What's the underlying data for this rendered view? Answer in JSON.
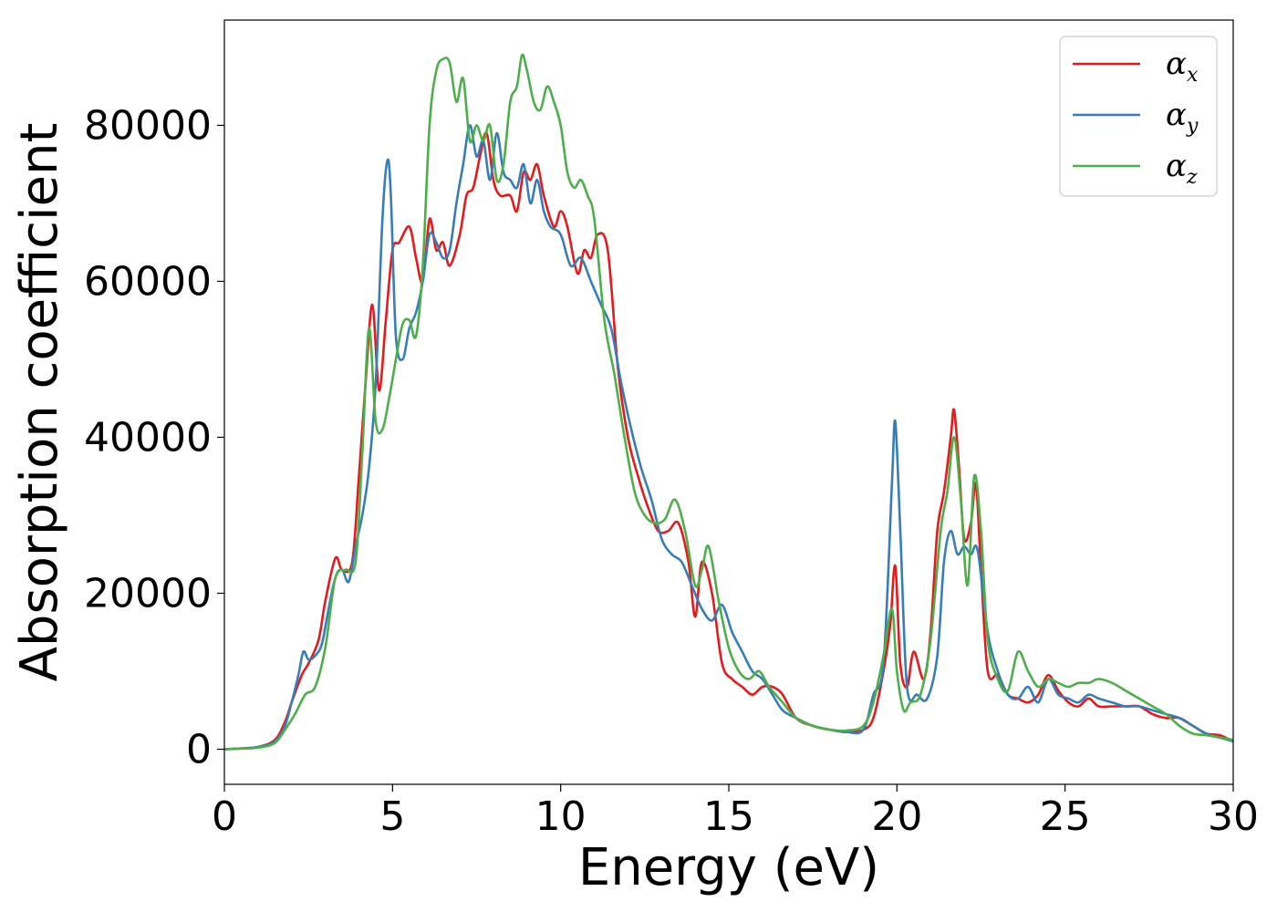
{
  "chart_data": {
    "type": "line",
    "title": "",
    "xlabel": "Energy (eV)",
    "ylabel": "Absorption coefficient",
    "xlim": [
      0,
      30
    ],
    "ylim": [
      -4500,
      93500
    ],
    "xticks": [
      0,
      5,
      10,
      15,
      20,
      25,
      30
    ],
    "yticks": [
      0,
      20000,
      40000,
      60000,
      80000
    ],
    "grid": false,
    "legend_position": "top-right",
    "series": [
      {
        "name": "α_x",
        "label_main": "α",
        "label_sub": "x",
        "color": "#e41a1c",
        "x": [
          0,
          0.5,
          1.0,
          1.5,
          1.8,
          2.0,
          2.3,
          2.5,
          2.8,
          3.0,
          3.3,
          3.5,
          3.8,
          4.0,
          4.2,
          4.4,
          4.6,
          4.8,
          5.0,
          5.2,
          5.5,
          5.7,
          5.9,
          6.1,
          6.3,
          6.5,
          6.7,
          7.0,
          7.2,
          7.4,
          7.6,
          7.8,
          8.0,
          8.2,
          8.5,
          8.7,
          8.9,
          9.1,
          9.3,
          9.5,
          9.8,
          10.0,
          10.2,
          10.5,
          10.7,
          10.9,
          11.1,
          11.4,
          11.7,
          12.0,
          12.3,
          12.6,
          12.9,
          13.2,
          13.5,
          13.8,
          14.0,
          14.2,
          14.5,
          14.8,
          15.1,
          15.4,
          15.7,
          16.0,
          16.3,
          16.6,
          17.0,
          17.5,
          18.0,
          18.5,
          19.0,
          19.3,
          19.6,
          19.8,
          19.95,
          20.1,
          20.3,
          20.5,
          20.8,
          21.0,
          21.2,
          21.4,
          21.6,
          21.7,
          21.85,
          22.0,
          22.2,
          22.35,
          22.5,
          22.7,
          23.0,
          23.3,
          23.6,
          23.9,
          24.2,
          24.5,
          24.8,
          25.1,
          25.4,
          25.7,
          26.0,
          26.4,
          26.8,
          27.2,
          27.6,
          28.0,
          28.4,
          28.8,
          29.2,
          29.6,
          30.0
        ],
        "y": [
          0,
          100,
          300,
          1200,
          3500,
          6000,
          9500,
          11000,
          14000,
          19000,
          24500,
          23000,
          24000,
          35000,
          47000,
          57000,
          46000,
          55000,
          64000,
          65000,
          67000,
          63000,
          60000,
          68000,
          64000,
          65000,
          62000,
          66000,
          71000,
          72000,
          76000,
          79000,
          73000,
          71000,
          71000,
          69000,
          74000,
          73000,
          75000,
          71000,
          67000,
          69000,
          67000,
          61000,
          64000,
          63000,
          66000,
          64000,
          49000,
          40000,
          35000,
          31000,
          28000,
          28000,
          29000,
          24000,
          17000,
          24000,
          20000,
          11000,
          9000,
          8000,
          7000,
          8000,
          8000,
          7000,
          4000,
          3000,
          2500,
          2200,
          2500,
          4000,
          10000,
          16000,
          23500,
          11000,
          8000,
          12500,
          9000,
          15000,
          28000,
          33000,
          40000,
          43500,
          36000,
          27000,
          29000,
          34000,
          23000,
          10000,
          9500,
          7000,
          6500,
          6000,
          7000,
          9500,
          7500,
          6000,
          5500,
          6500,
          5500,
          5500,
          5500,
          5500,
          4500,
          4000,
          4000,
          3000,
          2000,
          1800,
          1000
        ]
      },
      {
        "name": "α_y",
        "label_main": "α",
        "label_sub": "y",
        "color": "#377eb8",
        "x": [
          0,
          0.5,
          1.0,
          1.5,
          1.8,
          2.0,
          2.2,
          2.35,
          2.5,
          2.7,
          2.9,
          3.1,
          3.3,
          3.5,
          3.7,
          3.9,
          4.1,
          4.3,
          4.5,
          4.7,
          4.85,
          4.95,
          5.1,
          5.3,
          5.5,
          5.7,
          5.9,
          6.1,
          6.3,
          6.5,
          6.7,
          6.9,
          7.1,
          7.3,
          7.5,
          7.7,
          7.9,
          8.1,
          8.3,
          8.5,
          8.7,
          8.9,
          9.1,
          9.3,
          9.5,
          9.7,
          10.0,
          10.3,
          10.6,
          10.9,
          11.2,
          11.5,
          11.8,
          12.1,
          12.4,
          12.7,
          13.0,
          13.3,
          13.6,
          13.9,
          14.2,
          14.5,
          14.8,
          15.1,
          15.4,
          15.7,
          16.0,
          16.3,
          16.6,
          17.0,
          17.5,
          18.0,
          18.5,
          19.0,
          19.3,
          19.6,
          19.85,
          19.95,
          20.1,
          20.3,
          20.6,
          20.9,
          21.2,
          21.4,
          21.6,
          21.8,
          22.0,
          22.2,
          22.4,
          22.7,
          23.0,
          23.3,
          23.6,
          23.9,
          24.2,
          24.5,
          24.8,
          25.1,
          25.4,
          25.7,
          26.0,
          26.4,
          26.8,
          27.2,
          27.6,
          28.0,
          28.4,
          28.8,
          29.2,
          29.6,
          30.0
        ],
        "y": [
          0,
          100,
          300,
          1000,
          3000,
          6000,
          9500,
          12500,
          11500,
          12000,
          13500,
          18000,
          22000,
          23000,
          21500,
          26000,
          30000,
          36000,
          47000,
          68000,
          75500,
          71000,
          53000,
          50000,
          54000,
          56000,
          60000,
          66000,
          65000,
          63000,
          64000,
          70000,
          75000,
          80000,
          76000,
          78000,
          73000,
          79000,
          74000,
          73000,
          72000,
          75000,
          70000,
          73000,
          69000,
          67000,
          66000,
          62000,
          63000,
          60000,
          57000,
          54000,
          47000,
          41000,
          36000,
          32000,
          27000,
          25000,
          24000,
          21000,
          18000,
          16500,
          18500,
          15000,
          12500,
          10000,
          9000,
          7000,
          5000,
          4000,
          3000,
          2500,
          2200,
          2500,
          7000,
          11000,
          34000,
          42000,
          28000,
          8000,
          7000,
          6500,
          12000,
          24000,
          28000,
          25000,
          26000,
          25000,
          25500,
          15000,
          10000,
          7000,
          6500,
          8000,
          6000,
          9000,
          7000,
          6500,
          6000,
          7000,
          6500,
          6000,
          5500,
          5500,
          5000,
          4500,
          4000,
          3000,
          2000,
          1500,
          1000
        ]
      },
      {
        "name": "α_z",
        "label_main": "α",
        "label_sub": "z",
        "color": "#4daf4a",
        "x": [
          0,
          0.5,
          1.0,
          1.5,
          1.8,
          2.1,
          2.4,
          2.7,
          3.0,
          3.3,
          3.6,
          3.9,
          4.1,
          4.3,
          4.5,
          4.7,
          4.9,
          5.1,
          5.3,
          5.5,
          5.7,
          5.9,
          6.1,
          6.3,
          6.5,
          6.7,
          6.9,
          7.1,
          7.3,
          7.5,
          7.7,
          7.9,
          8.1,
          8.3,
          8.5,
          8.7,
          8.85,
          9.0,
          9.2,
          9.4,
          9.6,
          9.8,
          10.0,
          10.2,
          10.4,
          10.6,
          10.8,
          11.0,
          11.3,
          11.6,
          11.9,
          12.2,
          12.5,
          12.8,
          13.1,
          13.4,
          13.7,
          14.0,
          14.2,
          14.4,
          14.7,
          15.0,
          15.3,
          15.6,
          15.9,
          16.2,
          16.6,
          17.0,
          17.5,
          18.0,
          18.5,
          19.0,
          19.3,
          19.6,
          19.85,
          20.0,
          20.2,
          20.4,
          20.7,
          21.0,
          21.3,
          21.5,
          21.7,
          21.9,
          22.1,
          22.3,
          22.5,
          22.7,
          23.0,
          23.3,
          23.6,
          23.9,
          24.2,
          24.5,
          24.8,
          25.1,
          25.4,
          25.7,
          26.0,
          26.4,
          26.8,
          27.2,
          27.6,
          28.0,
          28.4,
          28.8,
          29.2,
          29.6,
          30.0
        ],
        "y": [
          0,
          100,
          200,
          800,
          2500,
          4500,
          7000,
          8000,
          13000,
          22000,
          23000,
          24000,
          38000,
          54000,
          42000,
          41000,
          45000,
          50000,
          54500,
          55000,
          53000,
          62000,
          80000,
          87000,
          88500,
          88000,
          83000,
          86000,
          78000,
          80000,
          78000,
          80000,
          73000,
          75000,
          83000,
          85000,
          89000,
          87000,
          83000,
          82000,
          85000,
          83000,
          80000,
          74000,
          72000,
          73000,
          71000,
          68000,
          55000,
          48000,
          40000,
          33000,
          30000,
          29000,
          29500,
          32000,
          28000,
          21000,
          23000,
          26000,
          19000,
          13000,
          10000,
          9000,
          10000,
          8000,
          6000,
          4000,
          3000,
          2500,
          2400,
          3000,
          6000,
          12000,
          18000,
          10000,
          5000,
          6000,
          7000,
          14000,
          28000,
          33000,
          40000,
          32000,
          21000,
          35000,
          28000,
          14000,
          9000,
          7500,
          12500,
          10000,
          8000,
          9000,
          8500,
          8000,
          8500,
          8500,
          9000,
          8500,
          7500,
          6500,
          5500,
          4500,
          3000,
          2000,
          1800,
          1500,
          1200
        ]
      }
    ]
  }
}
